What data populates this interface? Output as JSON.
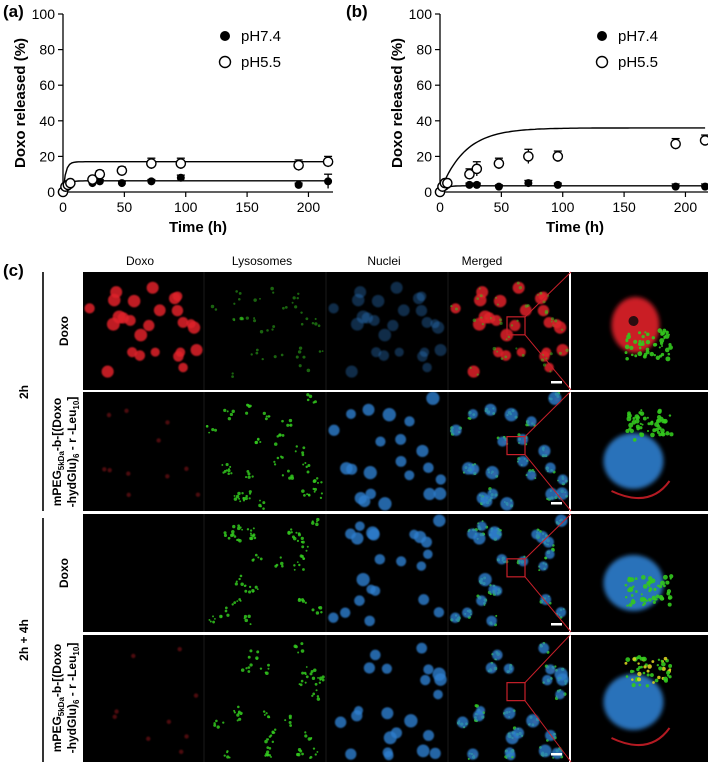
{
  "figure": {
    "panel_labels": [
      "(a)",
      "(b)",
      "(c)"
    ]
  },
  "chart_data": [
    {
      "type": "scatter",
      "panel": "(a)",
      "xlabel": "Time (h)",
      "ylabel": "Doxo released (%)",
      "xlim": [
        0,
        220
      ],
      "ylim": [
        0,
        100
      ],
      "xticks": [
        0,
        50,
        100,
        150,
        200
      ],
      "yticks": [
        0,
        20,
        40,
        60,
        80,
        100
      ],
      "legend": "top-right",
      "series": [
        {
          "name": "pH7.4",
          "marker": "filled-circle",
          "x": [
            0,
            2,
            4,
            6,
            24,
            30,
            48,
            72,
            96,
            192,
            216
          ],
          "y": [
            0,
            2,
            3,
            4,
            5,
            6,
            5,
            6,
            8,
            4,
            6
          ],
          "err": [
            0.5,
            0.5,
            0.8,
            0.8,
            1,
            1,
            1,
            1,
            1.5,
            1,
            4
          ],
          "fit": [
            0.3,
            6.3
          ]
        },
        {
          "name": "pH5.5",
          "marker": "open-circle",
          "x": [
            0,
            2,
            4,
            6,
            24,
            30,
            48,
            72,
            96,
            192,
            216
          ],
          "y": [
            0,
            3,
            4,
            5,
            7,
            10,
            12,
            16,
            16,
            15,
            17
          ],
          "err": [
            0.5,
            0.8,
            1,
            1.5,
            1.5,
            2,
            2,
            3,
            3,
            3,
            3
          ],
          "fit": [
            0.45,
            17
          ]
        }
      ]
    },
    {
      "type": "scatter",
      "panel": "(b)",
      "xlabel": "Time (h)",
      "ylabel": "Doxo released (%)",
      "xlim": [
        0,
        220
      ],
      "ylim": [
        0,
        100
      ],
      "xticks": [
        0,
        50,
        100,
        150,
        200
      ],
      "yticks": [
        0,
        20,
        40,
        60,
        80,
        100
      ],
      "legend": "top-right",
      "series": [
        {
          "name": "pH7.4",
          "marker": "filled-circle",
          "x": [
            0,
            2,
            4,
            6,
            24,
            30,
            48,
            72,
            96,
            192,
            216
          ],
          "y": [
            0,
            2,
            3,
            4,
            4,
            4,
            3,
            5,
            4,
            3,
            3
          ],
          "err": [
            0.5,
            0.5,
            0.8,
            1,
            1,
            1,
            1,
            1.5,
            1,
            1.5,
            1.5
          ],
          "fit": [
            0.25,
            3.5
          ]
        },
        {
          "name": "pH5.5",
          "marker": "open-circle",
          "x": [
            0,
            2,
            4,
            6,
            24,
            30,
            48,
            72,
            96,
            192,
            216
          ],
          "y": [
            0,
            3,
            5,
            5,
            10,
            13,
            16,
            20,
            20,
            27,
            29
          ],
          "err": [
            0.5,
            1,
            1.5,
            1.5,
            3,
            4,
            3,
            4,
            3,
            3,
            3
          ],
          "fit": [
            0.05,
            36
          ]
        }
      ]
    }
  ],
  "microscopy": {
    "columns": [
      "Doxo",
      "Lysosomes",
      "Nuclei",
      "Merged"
    ],
    "time_groups": [
      "2h",
      "2h + 4h"
    ],
    "row_labels": [
      {
        "id": "doxo-2h",
        "text": "Doxo"
      },
      {
        "id": "poly-2h",
        "line1_a": "mPEG",
        "line1_sub": "5kDa",
        "line1_b": "-b-[(Doxo",
        "line2_a": "-hydGlu)",
        "line2_sub": "6",
        "line2_b": " - r -Leu",
        "line2_sub2": "10",
        "line2_c": "]"
      },
      {
        "id": "doxo-4h",
        "text": "Doxo"
      },
      {
        "id": "poly-4h",
        "line1_a": "mPEG",
        "line1_sub": "5kDa",
        "line1_b": "-b-[(Doxo",
        "line2_a": "-hydGlu)",
        "line2_sub": "6",
        "line2_b": " - r -Leu",
        "line2_sub2": "10",
        "line2_c": "]"
      }
    ],
    "colors": {
      "doxo": "#e0202a",
      "lysosomes": "#33c81e",
      "nuclei": "#2f7fcf",
      "box": "#c8202a"
    }
  }
}
